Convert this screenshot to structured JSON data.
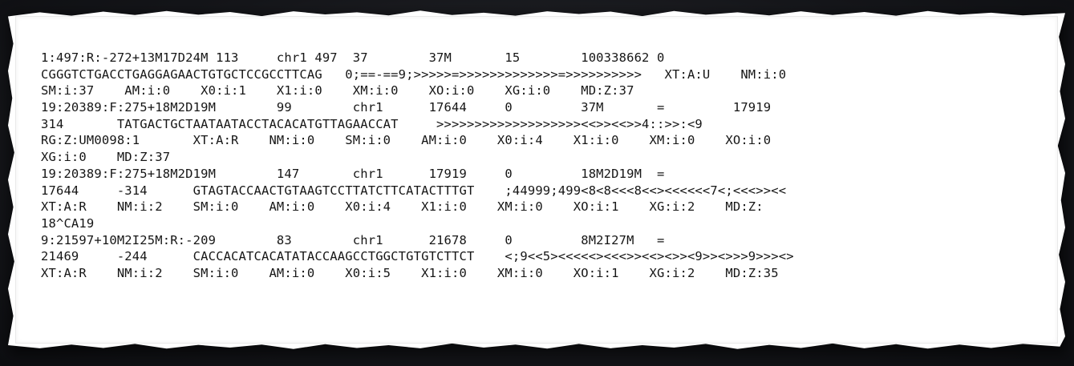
{
  "document": {
    "lines": [
      "1:497:R:-272+13M17D24M 113     chr1 497  37        37M       15        100338662 0",
      "CGGGTCTGACCTGAGGAGAACTGTGCTCCGCCTTCAG   0;==-==9;>>>>>=>>>>>>>>>>>>>=>>>>>>>>>>   XT:A:U    NM:i:0",
      "SM:i:37    AM:i:0    X0:i:1    X1:i:0    XM:i:0    XO:i:0    XG:i:0    MD:Z:37",
      "19:20389:F:275+18M2D19M        99        chr1      17644     0         37M       =         17919",
      "314       TATGACTGCTAATAATACCTACACATGTTAGAACCAT     >>>>>>>>>>>>>>>>>>><<>><<>>4::>>:<9",
      "RG:Z:UM0098:1       XT:A:R    NM:i:0    SM:i:0    AM:i:0    X0:i:4    X1:i:0    XM:i:0    XO:i:0",
      "XG:i:0    MD:Z:37",
      "19:20389:F:275+18M2D19M        147       chr1      17919     0         18M2D19M  =",
      "17644     -314      GTAGTACCAACTGTAAGTCCTTATCTTCATACTTTGT    ;44999;499<8<8<<<8<<><<<<<<7<;<<<>><<",
      "XT:A:R    NM:i:2    SM:i:0    AM:i:0    X0:i:4    X1:i:0    XM:i:0    XO:i:1    XG:i:2    MD:Z:",
      "18^CA19",
      "9:21597+10M2I25M:R:-209        83        chr1      21678     0         8M2I27M   =",
      "21469     -244      CACCACATCACATATACCAAGCCTGGCTGTGTCTTCT    <;9<<5><<<<<><<<>><<><>><9>><>>>9>>><>",
      "XT:A:R    NM:i:2    SM:i:0    AM:i:0    X0:i:5    X1:i:0    XM:i:0    XO:i:1    XG:i:2    MD:Z:35"
    ]
  }
}
